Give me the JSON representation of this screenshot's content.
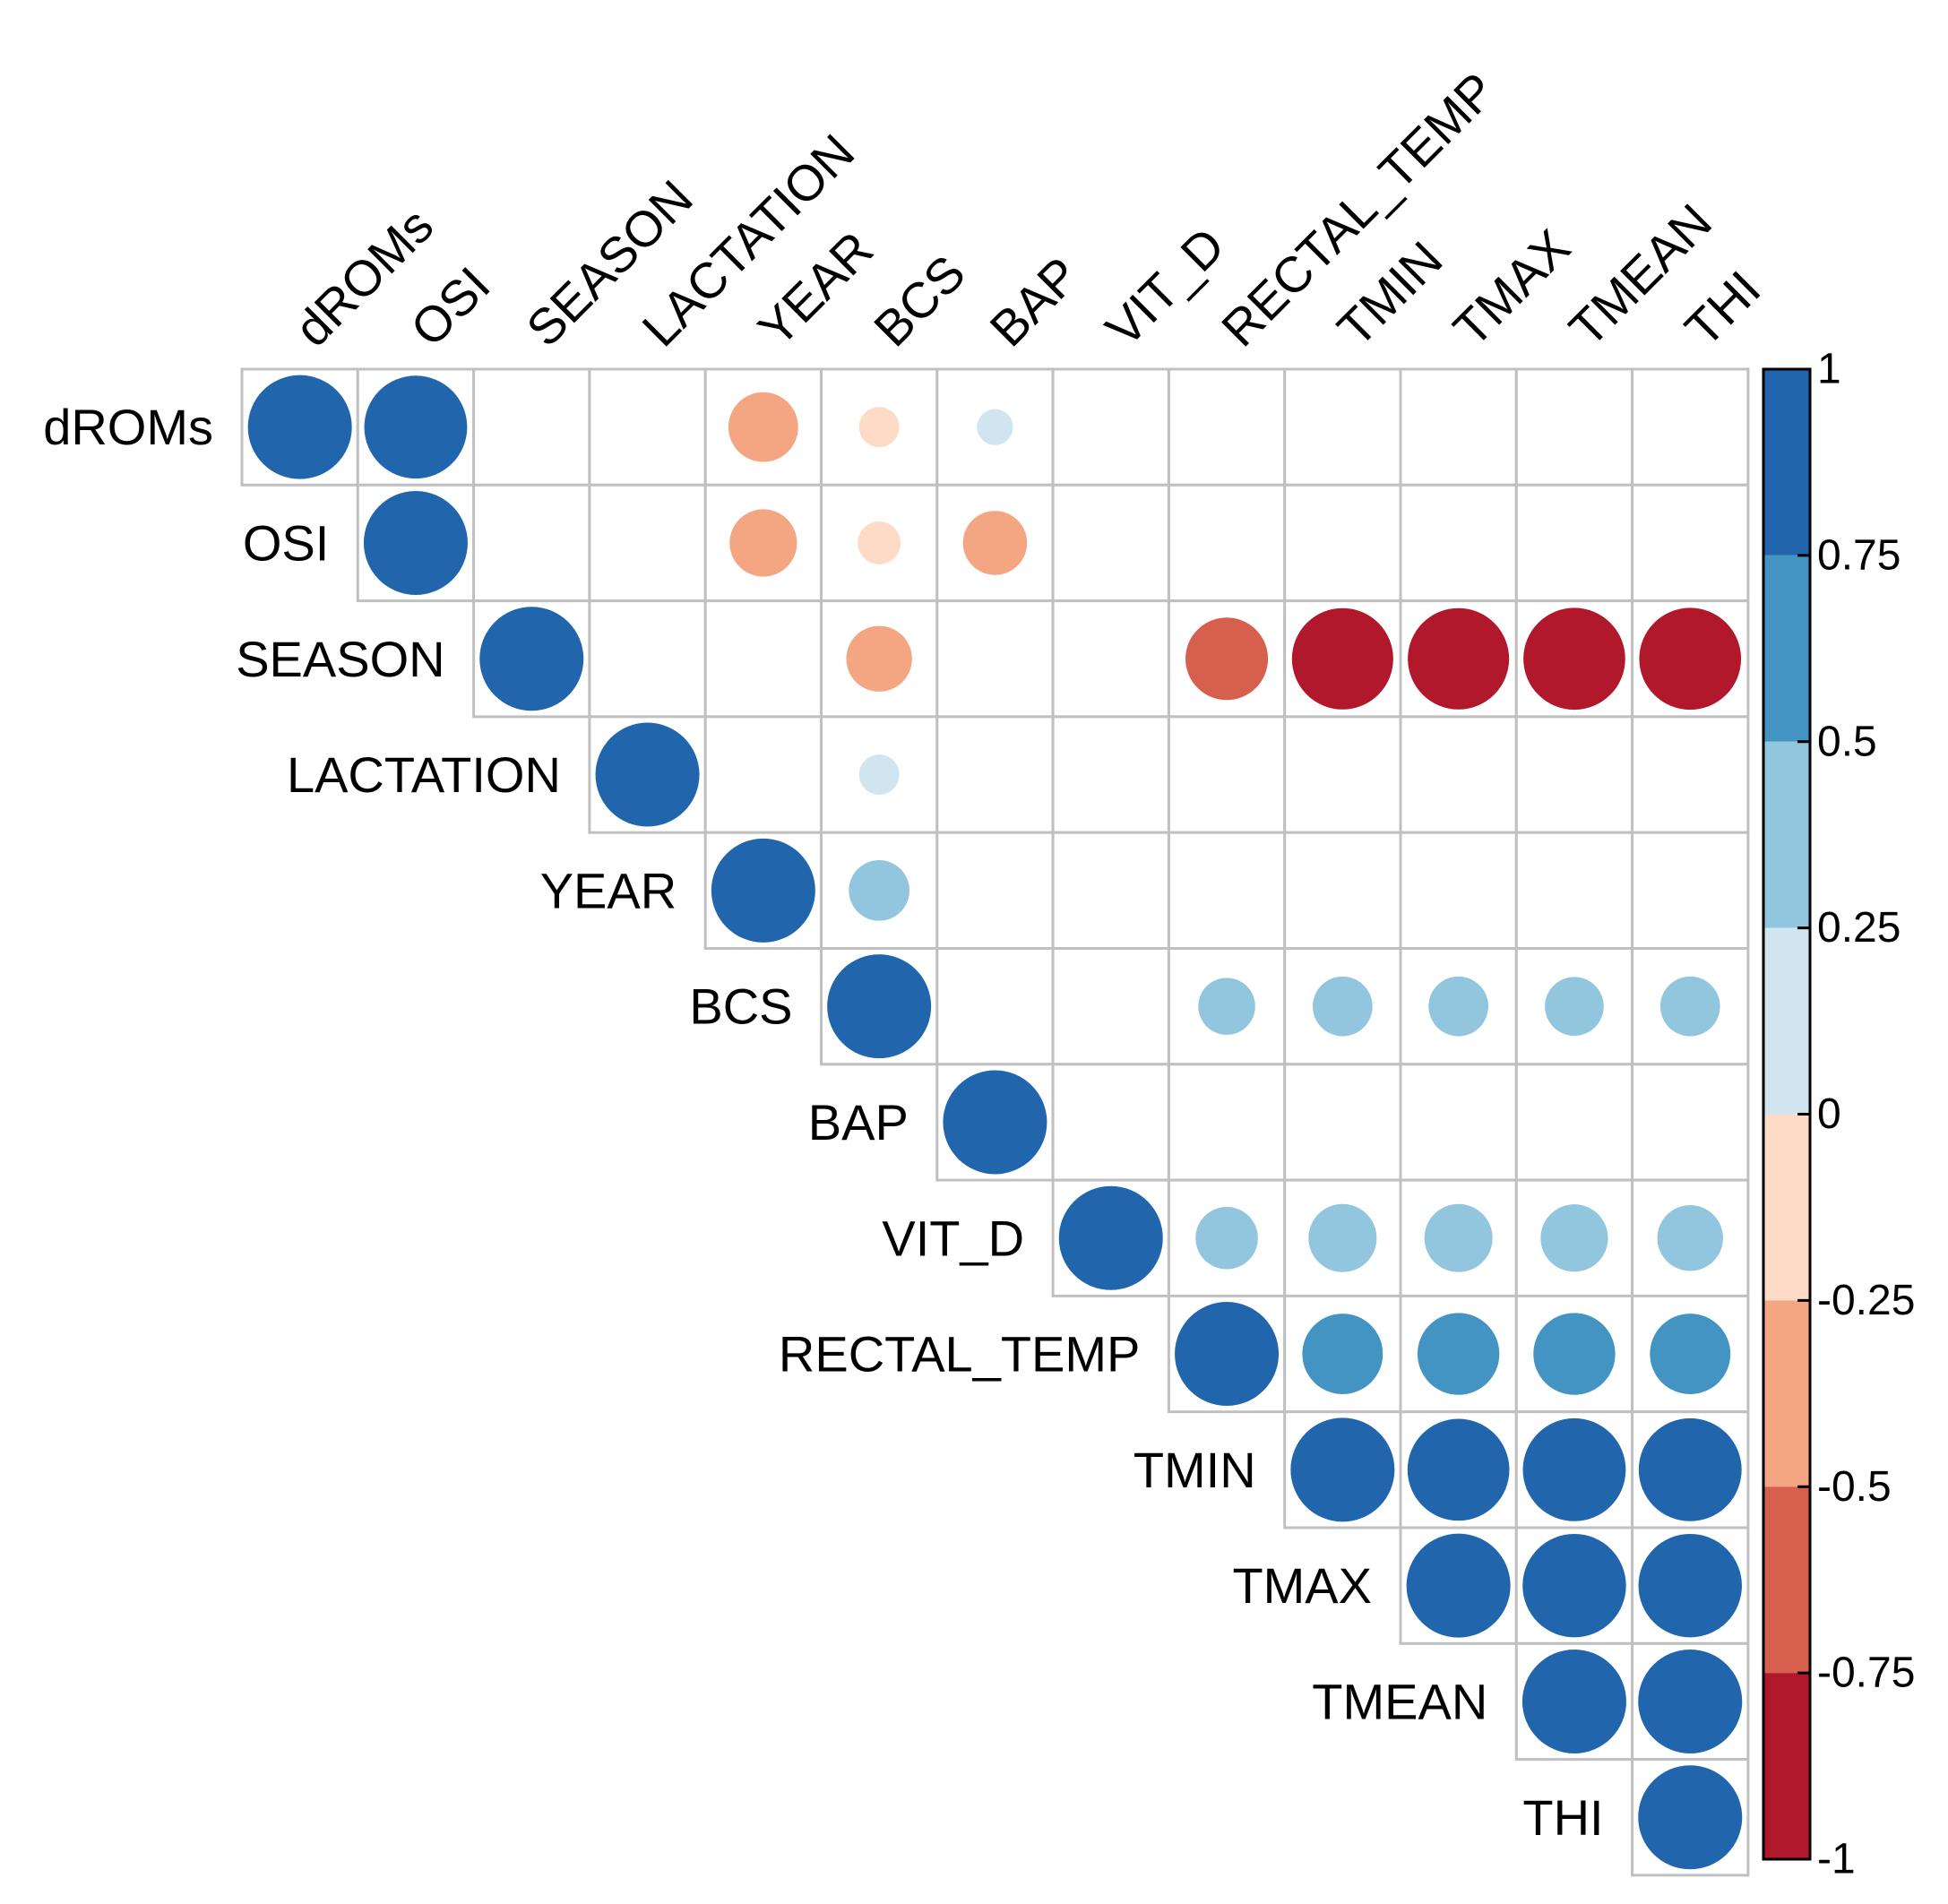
{
  "chart_data": {
    "type": "heatmap",
    "style": "corrplot-circle-upper",
    "variables": [
      "dROMs",
      "OSI",
      "SEASON",
      "LACTATION",
      "YEAR",
      "BCS",
      "BAP",
      "VIT_D",
      "RECTAL_TEMP",
      "TMIN",
      "TMAX",
      "TMEAN",
      "THI"
    ],
    "cells": [
      {
        "row": "dROMs",
        "col": "dROMs",
        "value": 1
      },
      {
        "row": "dROMs",
        "col": "OSI",
        "value": 0.98
      },
      {
        "row": "dROMs",
        "col": "YEAR",
        "value": -0.45
      },
      {
        "row": "dROMs",
        "col": "BCS",
        "value": -0.15
      },
      {
        "row": "dROMs",
        "col": "BAP",
        "value": 0.12
      },
      {
        "row": "OSI",
        "col": "OSI",
        "value": 1
      },
      {
        "row": "OSI",
        "col": "YEAR",
        "value": -0.42
      },
      {
        "row": "OSI",
        "col": "BCS",
        "value": -0.17
      },
      {
        "row": "OSI",
        "col": "BAP",
        "value": -0.38
      },
      {
        "row": "SEASON",
        "col": "SEASON",
        "value": 1
      },
      {
        "row": "SEASON",
        "col": "BCS",
        "value": -0.4
      },
      {
        "row": "SEASON",
        "col": "RECTAL_TEMP",
        "value": -0.63
      },
      {
        "row": "SEASON",
        "col": "TMIN",
        "value": -0.95
      },
      {
        "row": "SEASON",
        "col": "TMAX",
        "value": -0.95
      },
      {
        "row": "SEASON",
        "col": "TMEAN",
        "value": -0.96
      },
      {
        "row": "SEASON",
        "col": "THI",
        "value": -0.96
      },
      {
        "row": "LACTATION",
        "col": "LACTATION",
        "value": 1
      },
      {
        "row": "LACTATION",
        "col": "BCS",
        "value": 0.15
      },
      {
        "row": "YEAR",
        "col": "YEAR",
        "value": 1
      },
      {
        "row": "YEAR",
        "col": "BCS",
        "value": 0.34
      },
      {
        "row": "BCS",
        "col": "BCS",
        "value": 1
      },
      {
        "row": "BCS",
        "col": "RECTAL_TEMP",
        "value": 0.3
      },
      {
        "row": "BCS",
        "col": "TMIN",
        "value": 0.33
      },
      {
        "row": "BCS",
        "col": "TMAX",
        "value": 0.33
      },
      {
        "row": "BCS",
        "col": "TMEAN",
        "value": 0.32
      },
      {
        "row": "BCS",
        "col": "THI",
        "value": 0.33
      },
      {
        "row": "BAP",
        "col": "BAP",
        "value": 1
      },
      {
        "row": "VIT_D",
        "col": "VIT_D",
        "value": 1
      },
      {
        "row": "VIT_D",
        "col": "RECTAL_TEMP",
        "value": 0.36
      },
      {
        "row": "VIT_D",
        "col": "TMIN",
        "value": 0.43
      },
      {
        "row": "VIT_D",
        "col": "TMAX",
        "value": 0.43
      },
      {
        "row": "VIT_D",
        "col": "TMEAN",
        "value": 0.42
      },
      {
        "row": "VIT_D",
        "col": "THI",
        "value": 0.4
      },
      {
        "row": "RECTAL_TEMP",
        "col": "RECTAL_TEMP",
        "value": 1
      },
      {
        "row": "RECTAL_TEMP",
        "col": "TMIN",
        "value": 0.6
      },
      {
        "row": "RECTAL_TEMP",
        "col": "TMAX",
        "value": 0.62
      },
      {
        "row": "RECTAL_TEMP",
        "col": "TMEAN",
        "value": 0.62
      },
      {
        "row": "RECTAL_TEMP",
        "col": "THI",
        "value": 0.6
      },
      {
        "row": "TMIN",
        "col": "TMIN",
        "value": 1
      },
      {
        "row": "TMIN",
        "col": "TMAX",
        "value": 0.96
      },
      {
        "row": "TMIN",
        "col": "TMEAN",
        "value": 0.98
      },
      {
        "row": "TMIN",
        "col": "THI",
        "value": 0.98
      },
      {
        "row": "TMAX",
        "col": "TMAX",
        "value": 1
      },
      {
        "row": "TMAX",
        "col": "TMEAN",
        "value": 0.99
      },
      {
        "row": "TMAX",
        "col": "THI",
        "value": 0.99
      },
      {
        "row": "TMEAN",
        "col": "TMEAN",
        "value": 1
      },
      {
        "row": "TMEAN",
        "col": "THI",
        "value": 1
      },
      {
        "row": "THI",
        "col": "THI",
        "value": 1
      }
    ],
    "colorbar": {
      "range": [
        -1,
        1
      ],
      "ticks": [
        "1",
        "0.75",
        "0.5",
        "0.25",
        "0",
        "-0.25",
        "-0.5",
        "-0.75",
        "-1"
      ],
      "bins": [
        {
          "from": 0.75,
          "to": 1,
          "color": "#2166ac"
        },
        {
          "from": 0.5,
          "to": 0.75,
          "color": "#4393c3"
        },
        {
          "from": 0.25,
          "to": 0.5,
          "color": "#92c5de"
        },
        {
          "from": 0,
          "to": 0.25,
          "color": "#d1e5f0"
        },
        {
          "from": -0.25,
          "to": 0,
          "color": "#fddbc7"
        },
        {
          "from": -0.5,
          "to": -0.25,
          "color": "#f4a582"
        },
        {
          "from": -0.75,
          "to": -0.5,
          "color": "#d6604d"
        },
        {
          "from": -1,
          "to": -0.75,
          "color": "#b2182b"
        }
      ]
    },
    "grid_color": "#c0c0c0"
  }
}
